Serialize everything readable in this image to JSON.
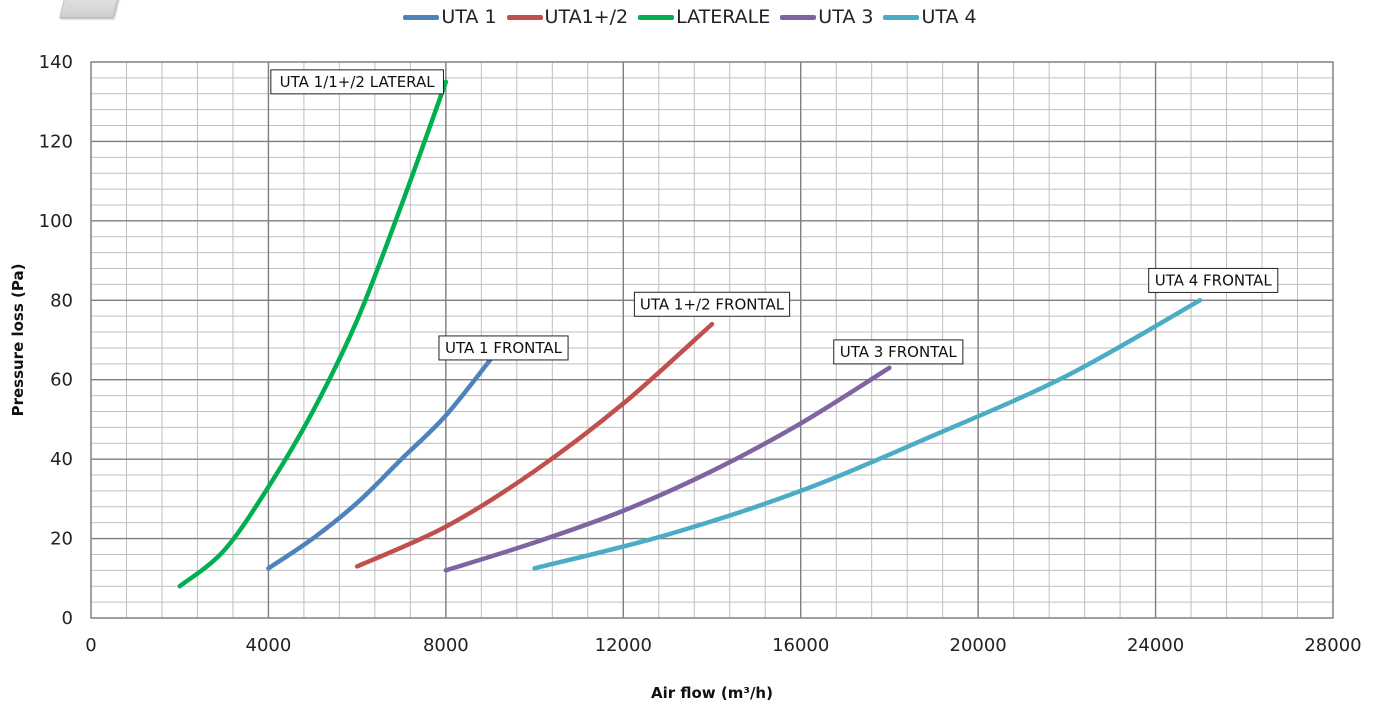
{
  "chart_data": {
    "type": "line",
    "title": "",
    "xlabel": "Air flow (m³/h)",
    "ylabel": "Pressure loss (Pa)",
    "xlim": [
      0,
      28000
    ],
    "ylim": [
      0,
      140
    ],
    "x_ticks": [
      0,
      4000,
      8000,
      12000,
      16000,
      20000,
      24000,
      28000
    ],
    "y_ticks": [
      0,
      20,
      40,
      60,
      80,
      100,
      120,
      140
    ],
    "grid": true,
    "legend_position": "top-center",
    "series": [
      {
        "name": "UTA 1",
        "color": "#4f81bd",
        "x": [
          4000,
          5000,
          6000,
          7000,
          8000,
          9000
        ],
        "y": [
          12.5,
          20,
          29,
          40,
          51,
          65
        ]
      },
      {
        "name": "UTA1+/2",
        "color": "#c0504d",
        "x": [
          6000,
          8000,
          10000,
          12000,
          14000
        ],
        "y": [
          13,
          23,
          37,
          54,
          74
        ]
      },
      {
        "name": "LATERALE",
        "color": "#00b050",
        "x": [
          2000,
          3000,
          4000,
          5000,
          6000,
          7000,
          8000
        ],
        "y": [
          8,
          17,
          33,
          52,
          75,
          104,
          135
        ]
      },
      {
        "name": "UTA 3",
        "color": "#8064a2",
        "x": [
          8000,
          10000,
          12000,
          14000,
          16000,
          18000
        ],
        "y": [
          12,
          19,
          27,
          37,
          49,
          63
        ]
      },
      {
        "name": "UTA 4",
        "color": "#4bacc6",
        "x": [
          10000,
          13000,
          16000,
          19000,
          22000,
          25000
        ],
        "y": [
          12.5,
          21,
          32,
          46,
          61,
          80
        ]
      }
    ],
    "annotations": [
      {
        "text": "UTA 1/1+/2 LATERAL",
        "x": 6000,
        "y": 135
      },
      {
        "text": "UTA 1 FRONTAL",
        "x": 9300,
        "y": 68
      },
      {
        "text": "UTA 1+/2 FRONTAL",
        "x": 14000,
        "y": 79
      },
      {
        "text": "UTA 3 FRONTAL",
        "x": 18200,
        "y": 67
      },
      {
        "text": "UTA 4 FRONTAL",
        "x": 25300,
        "y": 85
      }
    ]
  }
}
